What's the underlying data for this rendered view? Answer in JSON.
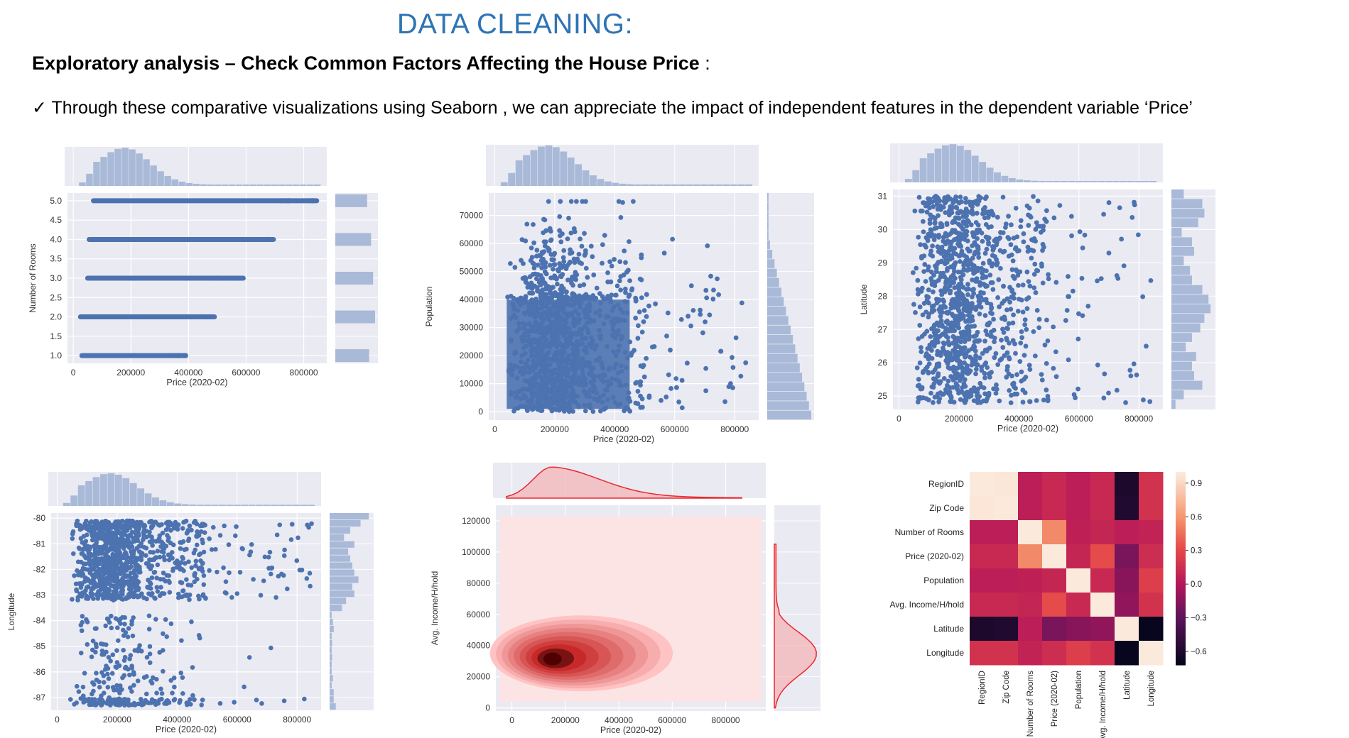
{
  "header": {
    "title": "DATA CLEANING:",
    "subtitle": "Exploratory analysis – Check Common Factors Affecting the House Price",
    "subtitle_colon": ":",
    "bullet": "✓ Through these comparative visualizations using Seaborn , we can appreciate the impact of  independent features in the dependent variable ‘Price’"
  },
  "colors": {
    "panel_bg": "#eaeaf2",
    "scatter": "#4c72b0",
    "hist": "#a9b9d8",
    "kde": "#e8292e",
    "kde_fill": "#f5b2b4"
  },
  "chart_data": [
    {
      "type": "scatter",
      "xlabel": "Price (2020-02)",
      "ylabel": "Number of Rooms",
      "xticks": [
        "0",
        "200000",
        "400000",
        "600000",
        "800000"
      ],
      "yticks": [
        "1.0",
        "1.5",
        "2.0",
        "2.5",
        "3.0",
        "3.5",
        "4.0",
        "4.5",
        "5.0"
      ],
      "xlim": [
        -20000,
        880000
      ],
      "ylim": [
        0.8,
        5.2
      ],
      "grid": true,
      "marginals": "histograms",
      "series": [
        {
          "y": 1,
          "x_range": [
            30000,
            390000
          ]
        },
        {
          "y": 2,
          "x_range": [
            25000,
            490000
          ]
        },
        {
          "y": 3,
          "x_range": [
            50000,
            590000
          ]
        },
        {
          "y": 4,
          "x_range": [
            55000,
            695000
          ]
        },
        {
          "y": 5,
          "x_range": [
            70000,
            845000
          ]
        }
      ],
      "y_marginal": [
        {
          "y": 1,
          "count": 0.85
        },
        {
          "y": 2,
          "count": 1.0
        },
        {
          "y": 3,
          "count": 0.95
        },
        {
          "y": 4,
          "count": 0.9
        },
        {
          "y": 5,
          "count": 0.8
        }
      ]
    },
    {
      "type": "scatter",
      "xlabel": "Price (2020-02)",
      "ylabel": "Population",
      "xticks": [
        "0",
        "200000",
        "400000",
        "600000",
        "800000"
      ],
      "yticks": [
        "0",
        "10000",
        "20000",
        "30000",
        "40000",
        "50000",
        "60000",
        "70000"
      ],
      "xlim": [
        -20000,
        880000
      ],
      "ylim": [
        -3000,
        78000
      ],
      "grid": true,
      "marginals": "histograms",
      "points_note": "dense cloud for price 30000–500000, population 0–45000; sparse up to price 850000 and population 75000"
    },
    {
      "type": "scatter",
      "xlabel": "Price (2020-02)",
      "ylabel": "Latitude",
      "xticks": [
        "0",
        "200000",
        "400000",
        "600000",
        "800000"
      ],
      "yticks": [
        "25",
        "26",
        "27",
        "28",
        "29",
        "30",
        "31"
      ],
      "xlim": [
        -20000,
        880000
      ],
      "ylim": [
        24.6,
        31.2
      ],
      "grid": true,
      "marginals": "histograms"
    },
    {
      "type": "scatter",
      "xlabel": "Price (2020-02)",
      "ylabel": "Longitude",
      "xticks": [
        "0",
        "200000",
        "400000",
        "600000",
        "800000"
      ],
      "yticks": [
        "-80",
        "-81",
        "-82",
        "-83",
        "-84",
        "-85",
        "-86",
        "-87"
      ],
      "xlim": [
        -20000,
        880000
      ],
      "ylim": [
        -87.5,
        -79.8
      ],
      "grid": true,
      "marginals": "histograms"
    },
    {
      "type": "kde",
      "xlabel": "Price (2020-02)",
      "ylabel": "Avg. Income/H/hold",
      "xticks": [
        "0",
        "200000",
        "400000",
        "600000",
        "800000"
      ],
      "yticks": [
        "0",
        "20000",
        "40000",
        "60000",
        "80000",
        "100000",
        "120000"
      ],
      "xlim": [
        -60000,
        950000
      ],
      "ylim": [
        -2000,
        130000
      ],
      "peak": {
        "x": 140000,
        "y": 31000
      },
      "grid": true,
      "marginals": "kde"
    },
    {
      "type": "heatmap",
      "labels": [
        "RegionID",
        "Zip Code",
        "Number of Rooms",
        "Price (2020-02)",
        "Population",
        "Avg. Income/H/hold",
        "Latitude",
        "Longitude"
      ],
      "colorbar_ticks": [
        "0.9",
        "0.6",
        "0.3",
        "0.0",
        "−0.3",
        "−0.6"
      ],
      "vmin": -0.72,
      "vmax": 1.0,
      "matrix": [
        [
          1.0,
          0.98,
          0.05,
          0.12,
          0.05,
          0.12,
          -0.62,
          0.18
        ],
        [
          0.98,
          1.0,
          0.05,
          0.12,
          0.05,
          0.12,
          -0.6,
          0.18
        ],
        [
          0.05,
          0.05,
          1.0,
          0.55,
          0.06,
          0.1,
          0.05,
          0.08
        ],
        [
          0.12,
          0.12,
          0.55,
          1.0,
          0.1,
          0.32,
          -0.2,
          0.15
        ],
        [
          0.05,
          0.05,
          0.06,
          0.1,
          1.0,
          0.12,
          -0.15,
          0.25
        ],
        [
          0.12,
          0.12,
          0.1,
          0.32,
          0.12,
          1.0,
          -0.12,
          0.18
        ],
        [
          -0.62,
          -0.6,
          0.05,
          -0.2,
          -0.15,
          -0.12,
          1.0,
          -0.72
        ],
        [
          0.18,
          0.18,
          0.08,
          0.15,
          0.25,
          0.18,
          -0.72,
          1.0
        ]
      ]
    }
  ]
}
